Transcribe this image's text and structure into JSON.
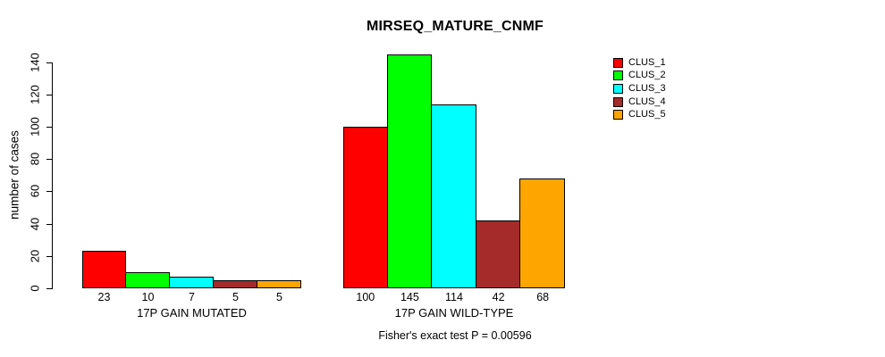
{
  "window": {
    "background": "#ffffff"
  },
  "chart_data": {
    "type": "bar",
    "title": "MIRSEQ_MATURE_CNMF",
    "ylabel": "number of cases",
    "xlabel": "",
    "footnote": "Fisher's exact test P = 0.00596",
    "categories": [
      "17P GAIN MUTATED",
      "17P GAIN WILD-TYPE"
    ],
    "series": [
      {
        "name": "CLUS_1",
        "color": "#ff0000",
        "values": [
          23,
          100
        ]
      },
      {
        "name": "CLUS_2",
        "color": "#00ff00",
        "values": [
          10,
          145
        ]
      },
      {
        "name": "CLUS_3",
        "color": "#00ffff",
        "values": [
          7,
          114
        ]
      },
      {
        "name": "CLUS_4",
        "color": "#a52a2a",
        "values": [
          5,
          42
        ]
      },
      {
        "name": "CLUS_5",
        "color": "#ffa500",
        "values": [
          5,
          68
        ]
      }
    ],
    "yticks": [
      0,
      20,
      40,
      60,
      80,
      100,
      120,
      140
    ],
    "ylim": [
      0,
      150
    ],
    "grid": false,
    "legend_position": "right",
    "show_bar_value_labels": true
  }
}
